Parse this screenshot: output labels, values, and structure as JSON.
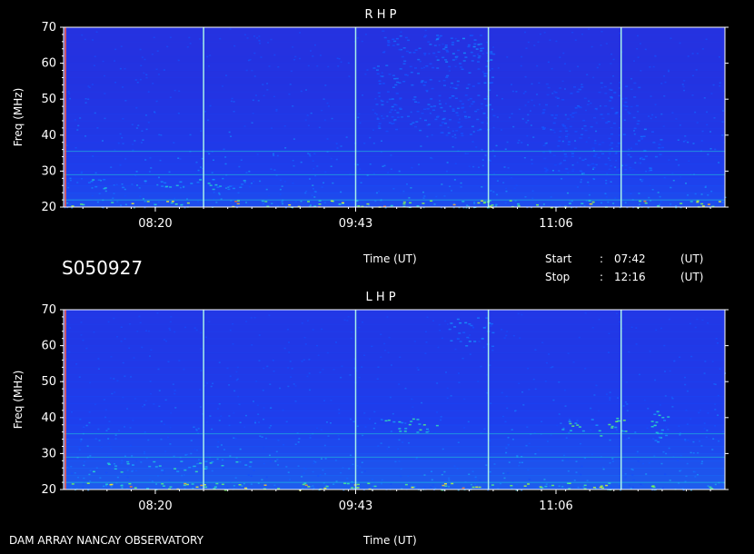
{
  "session_id": "S050927",
  "footer_left": "DAM ARRAY   NANCAY OBSERVATORY",
  "time_label": "Time (UT)",
  "start_label": "Start",
  "stop_label": "Stop",
  "colon": ":",
  "start_time": "07:42",
  "stop_time": "12:16",
  "unit_ut": "(UT)",
  "colors": {
    "background": "#000000",
    "panel_base": "#2a2ad8",
    "grid_line": "#a8f0e8",
    "tick_text": "#ffffff"
  },
  "chart_data": [
    {
      "type": "heatmap",
      "title": "R H P",
      "ylabel": "Freq (MHz)",
      "xlabel": "Time (UT)",
      "ylim": [
        20,
        70
      ],
      "yticks": [
        "20",
        "30",
        "40",
        "50",
        "60",
        "70"
      ],
      "xticks": [
        "08:20",
        "09:43",
        "11:06"
      ],
      "xtick_minutes": [
        500,
        583,
        666
      ],
      "time_range_minutes": [
        462,
        736
      ],
      "vertical_marker_minutes": [
        520,
        583,
        638,
        693
      ],
      "bursts": [
        {
          "t0": 464,
          "t1": 736,
          "f0": 20,
          "f1": 22,
          "level": 0.85
        },
        {
          "t0": 472,
          "t1": 540,
          "f0": 25,
          "f1": 28,
          "level": 0.55
        },
        {
          "t0": 590,
          "t1": 640,
          "f0": 40,
          "f1": 68,
          "level": 0.35
        },
        {
          "t0": 615,
          "t1": 640,
          "f0": 60,
          "f1": 68,
          "level": 0.45
        },
        {
          "t0": 660,
          "t1": 700,
          "f0": 30,
          "f1": 55,
          "level": 0.3
        },
        {
          "t0": 700,
          "t1": 710,
          "f0": 30,
          "f1": 42,
          "level": 0.4
        }
      ]
    },
    {
      "type": "heatmap",
      "title": "L H P",
      "ylabel": "Freq (MHz)",
      "xlabel": "Time (UT)",
      "ylim": [
        20,
        70
      ],
      "yticks": [
        "20",
        "30",
        "40",
        "50",
        "60",
        "70"
      ],
      "xticks": [
        "08:20",
        "09:43",
        "11:06"
      ],
      "xtick_minutes": [
        500,
        583,
        666
      ],
      "time_range_minutes": [
        462,
        736
      ],
      "vertical_marker_minutes": [
        520,
        583,
        638,
        693
      ],
      "bursts": [
        {
          "t0": 464,
          "t1": 736,
          "f0": 20,
          "f1": 22,
          "level": 0.85
        },
        {
          "t0": 472,
          "t1": 540,
          "f0": 25,
          "f1": 28,
          "level": 0.6
        },
        {
          "t0": 595,
          "t1": 620,
          "f0": 36,
          "f1": 40,
          "level": 0.65
        },
        {
          "t0": 620,
          "t1": 640,
          "f0": 60,
          "f1": 68,
          "level": 0.45
        },
        {
          "t0": 665,
          "t1": 695,
          "f0": 35,
          "f1": 40,
          "level": 0.7
        },
        {
          "t0": 705,
          "t1": 712,
          "f0": 33,
          "f1": 42,
          "level": 0.6
        }
      ]
    }
  ]
}
